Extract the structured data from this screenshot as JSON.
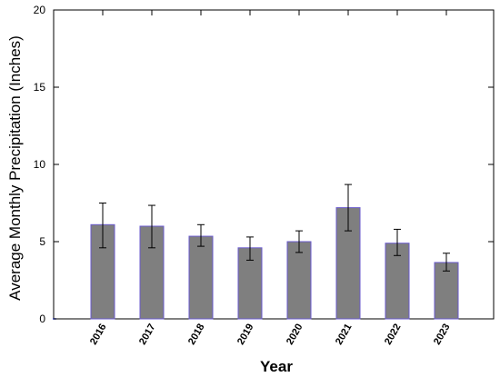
{
  "chart_data": {
    "type": "bar",
    "title": "",
    "xlabel": "Year",
    "ylabel": "Average Monthly Precipitation (Inches)",
    "ylim": [
      0,
      20
    ],
    "yticks": [
      "0",
      "5",
      "10",
      "15",
      "20"
    ],
    "categories": [
      "2016",
      "2017",
      "2018",
      "2019",
      "2020",
      "2021",
      "2022",
      "2023"
    ],
    "values": [
      6.1,
      6.0,
      5.35,
      4.6,
      5.0,
      7.2,
      4.9,
      3.65
    ],
    "error_low": [
      4.6,
      4.6,
      4.7,
      3.8,
      4.3,
      5.7,
      4.1,
      3.1
    ],
    "error_high": [
      7.5,
      7.35,
      6.1,
      5.3,
      5.7,
      8.7,
      5.8,
      4.25
    ],
    "grid": false,
    "legend": "none",
    "colors": {
      "bar_fill": "#7f7f7f",
      "bar_edge": "#6a5acd",
      "axis": "#000000",
      "error_bar": "#000000"
    }
  }
}
